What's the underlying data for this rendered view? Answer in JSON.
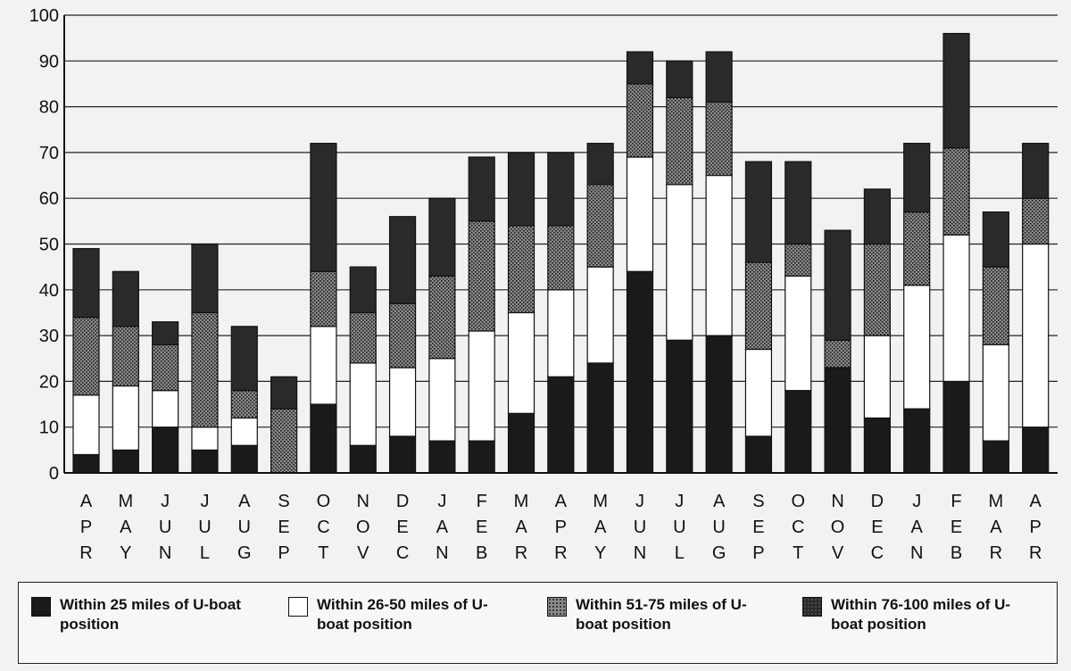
{
  "chart_data": {
    "type": "bar",
    "stacked": true,
    "categories": [
      "APR",
      "MAY",
      "JUN",
      "JUL",
      "AUG",
      "SEP",
      "OCT",
      "NOV",
      "DEC",
      "JAN",
      "FEB",
      "MAR",
      "APR",
      "MAY",
      "JUN",
      "JUL",
      "AUG",
      "SEP",
      "OCT",
      "NOV",
      "DEC",
      "JAN",
      "FEB",
      "MAR",
      "APR"
    ],
    "ylim": [
      0,
      100
    ],
    "yticks": [
      0,
      10,
      20,
      30,
      40,
      50,
      60,
      70,
      80,
      90,
      100
    ],
    "grid": true,
    "legend_position": "bottom",
    "series": [
      {
        "name": "Within 25 miles of U-boat position",
        "fill": "#1a1a1a",
        "values": [
          4,
          5,
          10,
          5,
          6,
          0,
          15,
          6,
          8,
          7,
          7,
          13,
          21,
          24,
          44,
          29,
          30,
          8,
          18,
          23,
          12,
          14,
          20,
          7,
          10
        ]
      },
      {
        "name": "Within 26-50 miles of U-boat position",
        "fill": "#ffffff",
        "values": [
          13,
          14,
          8,
          5,
          6,
          0,
          17,
          18,
          15,
          18,
          24,
          22,
          19,
          21,
          25,
          34,
          35,
          19,
          25,
          0,
          18,
          27,
          32,
          21,
          40
        ]
      },
      {
        "name": "Within 51-75 miles of U-boat position",
        "fill": "#6e6e6e",
        "values": [
          17,
          13,
          10,
          25,
          6,
          14,
          12,
          11,
          14,
          18,
          24,
          19,
          14,
          18,
          16,
          19,
          16,
          19,
          7,
          6,
          20,
          16,
          19,
          17,
          10
        ]
      },
      {
        "name": "Within 76-100 miles of U-boat position",
        "fill": "#2a2a2a",
        "values": [
          15,
          12,
          5,
          15,
          14,
          7,
          28,
          10,
          19,
          17,
          14,
          16,
          16,
          9,
          7,
          8,
          11,
          22,
          18,
          24,
          12,
          15,
          25,
          12,
          12
        ]
      }
    ]
  }
}
